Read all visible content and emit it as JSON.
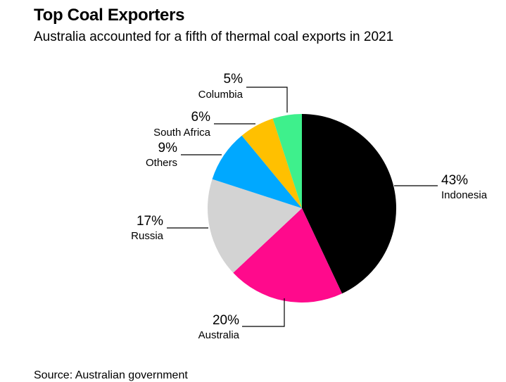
{
  "title": "Top Coal Exporters",
  "subtitle": "Australia accounted for a fifth of thermal coal exports in 2021",
  "source": "Source: Australian government",
  "chart_data": {
    "type": "pie",
    "title": "Top Coal Exporters",
    "subtitle": "Australia accounted for a fifth of thermal coal exports in 2021",
    "unit": "%",
    "slices": [
      {
        "name": "Indonesia",
        "value": 43,
        "label": "43%",
        "color": "#000000"
      },
      {
        "name": "Australia",
        "value": 20,
        "label": "20%",
        "color": "#ff0a8c"
      },
      {
        "name": "Russia",
        "value": 17,
        "label": "17%",
        "color": "#d3d3d3"
      },
      {
        "name": "Others",
        "value": 9,
        "label": "9%",
        "color": "#00a8ff"
      },
      {
        "name": "South Africa",
        "value": 6,
        "label": "6%",
        "color": "#ffc000"
      },
      {
        "name": "Columbia",
        "value": 5,
        "label": "5%",
        "color": "#3ef08c"
      }
    ],
    "start": "12 o'clock",
    "direction": "clockwise",
    "legend": "none"
  }
}
